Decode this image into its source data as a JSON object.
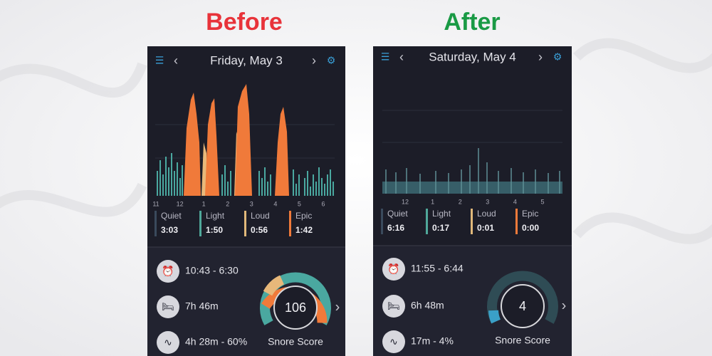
{
  "labels": {
    "before": "Before",
    "after": "After"
  },
  "panels": [
    {
      "date": "Friday, May 3",
      "hour_labels": [
        "11",
        "12",
        "1",
        "2",
        "3",
        "4",
        "5",
        "6"
      ],
      "legend": [
        {
          "name": "Quiet",
          "time": "3:03"
        },
        {
          "name": "Light",
          "time": "1:50"
        },
        {
          "name": "Loud",
          "time": "0:56"
        },
        {
          "name": "Epic",
          "time": "1:42"
        }
      ],
      "bedtime": "10:43 - 6:30",
      "duration": "7h 46m",
      "snoring": "4h 28m - 60%",
      "score": "106",
      "score_label": "Snore Score"
    },
    {
      "date": "Saturday, May 4",
      "hour_labels": [
        "12",
        "1",
        "2",
        "3",
        "4",
        "5"
      ],
      "legend": [
        {
          "name": "Quiet",
          "time": "6:16"
        },
        {
          "name": "Light",
          "time": "0:17"
        },
        {
          "name": "Loud",
          "time": "0:01"
        },
        {
          "name": "Epic",
          "time": "0:00"
        }
      ],
      "bedtime": "11:55 - 6:44",
      "duration": "6h 48m",
      "snoring": "17m - 4%",
      "score": "4",
      "score_label": "Snore Score"
    }
  ]
}
